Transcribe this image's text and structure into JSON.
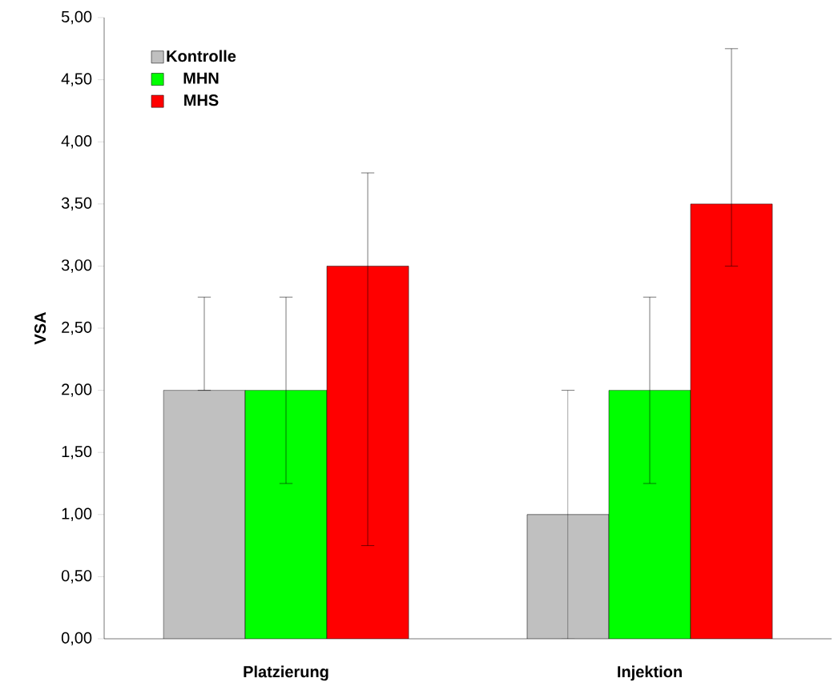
{
  "chart_data": {
    "type": "bar",
    "ylabel": "VSA",
    "categories": [
      "Platzierung",
      "Injektion"
    ],
    "series": [
      {
        "name": "Kontrolle",
        "color": "#c0c0c0",
        "values": [
          2.0,
          1.0
        ],
        "errors": [
          [
            2.0,
            2.75
          ],
          [
            0.0,
            2.0
          ]
        ]
      },
      {
        "name": "MHN",
        "color": "#00ff00",
        "values": [
          2.0,
          2.0
        ],
        "errors": [
          [
            1.25,
            2.75
          ],
          [
            1.25,
            2.75
          ]
        ]
      },
      {
        "name": "MHS",
        "color": "#ff0000",
        "values": [
          3.0,
          3.5
        ],
        "errors": [
          [
            0.75,
            3.75
          ],
          [
            3.0,
            4.75
          ]
        ]
      }
    ],
    "ylim": [
      0,
      5
    ],
    "yticks": [
      {
        "value": 0,
        "label": "0,00"
      },
      {
        "value": 0.5,
        "label": "0,50"
      },
      {
        "value": 1,
        "label": "1,00"
      },
      {
        "value": 1.5,
        "label": "1,50"
      },
      {
        "value": 2,
        "label": "2,00"
      },
      {
        "value": 2.5,
        "label": "2,50"
      },
      {
        "value": 3,
        "label": "3,00"
      },
      {
        "value": 3.5,
        "label": "3,50"
      },
      {
        "value": 4,
        "label": "4,00"
      },
      {
        "value": 4.5,
        "label": "4,50"
      },
      {
        "value": 5,
        "label": "5,00"
      }
    ],
    "legend": "top left"
  }
}
